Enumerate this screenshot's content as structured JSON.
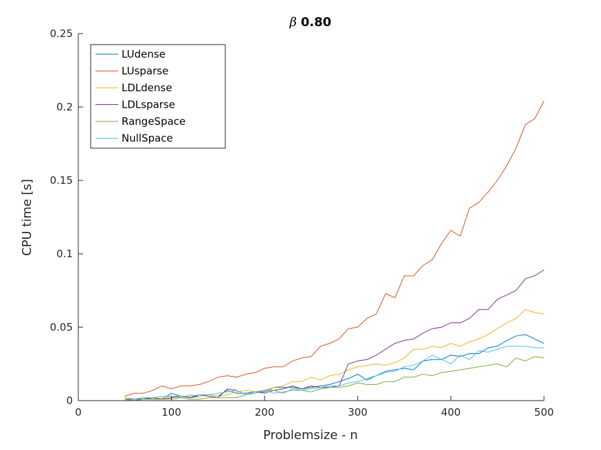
{
  "chart_data": {
    "type": "line",
    "title_symbol": "β",
    "title_value": "0.80",
    "xlabel": "Problemsize - n",
    "ylabel": "CPU time [s]",
    "xlim": [
      0,
      500
    ],
    "ylim": [
      0,
      0.25
    ],
    "xticks": [
      0,
      100,
      200,
      300,
      400,
      500
    ],
    "yticks": [
      0,
      0.05,
      0.1,
      0.15,
      0.2,
      0.25
    ],
    "xtick_labels": [
      "0",
      "100",
      "200",
      "300",
      "400",
      "500"
    ],
    "ytick_labels": [
      "0",
      "0.05",
      "0.1",
      "0.15",
      "0.2",
      "0.25"
    ],
    "grid": false,
    "legend_position": "top-left",
    "x": [
      50,
      60,
      70,
      80,
      90,
      100,
      110,
      120,
      130,
      140,
      150,
      160,
      170,
      180,
      190,
      200,
      210,
      220,
      230,
      240,
      250,
      260,
      270,
      280,
      290,
      300,
      310,
      320,
      330,
      340,
      350,
      360,
      370,
      380,
      390,
      400,
      410,
      420,
      430,
      440,
      450,
      460,
      470,
      480,
      490,
      500
    ],
    "series": [
      {
        "name": "LUdense",
        "color": "#0072BD",
        "values": [
          0.001,
          0.001,
          0.002,
          0.001,
          0.001,
          0.005,
          0.003,
          0.002,
          0.003,
          0.004,
          0.003,
          0.007,
          0.005,
          0.005,
          0.006,
          0.006,
          0.009,
          0.009,
          0.009,
          0.008,
          0.009,
          0.01,
          0.011,
          0.013,
          0.015,
          0.018,
          0.014,
          0.017,
          0.02,
          0.021,
          0.022,
          0.021,
          0.027,
          0.028,
          0.028,
          0.031,
          0.03,
          0.032,
          0.032,
          0.036,
          0.037,
          0.041,
          0.044,
          0.045,
          0.042,
          0.039
        ]
      },
      {
        "name": "LUsparse",
        "color": "#D95319",
        "values": [
          0.003,
          0.005,
          0.005,
          0.007,
          0.01,
          0.008,
          0.01,
          0.01,
          0.011,
          0.013,
          0.016,
          0.017,
          0.016,
          0.018,
          0.019,
          0.022,
          0.023,
          0.023,
          0.027,
          0.029,
          0.03,
          0.037,
          0.039,
          0.042,
          0.049,
          0.05,
          0.056,
          0.059,
          0.073,
          0.07,
          0.085,
          0.085,
          0.092,
          0.096,
          0.107,
          0.116,
          0.112,
          0.131,
          0.135,
          0.142,
          0.15,
          0.16,
          0.172,
          0.188,
          0.192,
          0.204
        ]
      },
      {
        "name": "LDLdense",
        "color": "#EDB120",
        "values": [
          0.002,
          0.001,
          0.001,
          0.001,
          0.002,
          0.003,
          0.002,
          0.004,
          0.003,
          0.004,
          0.003,
          0.004,
          0.006,
          0.007,
          0.006,
          0.007,
          0.009,
          0.01,
          0.013,
          0.013,
          0.016,
          0.014,
          0.017,
          0.018,
          0.021,
          0.023,
          0.024,
          0.025,
          0.024,
          0.026,
          0.029,
          0.035,
          0.035,
          0.037,
          0.036,
          0.039,
          0.037,
          0.04,
          0.042,
          0.045,
          0.049,
          0.053,
          0.056,
          0.062,
          0.06,
          0.059
        ]
      },
      {
        "name": "LDLsparse",
        "color": "#7E2F8E",
        "values": [
          0.001,
          0.001,
          0.001,
          0.002,
          0.001,
          0.002,
          0.003,
          0.002,
          0.004,
          0.003,
          0.002,
          0.008,
          0.007,
          0.004,
          0.006,
          0.005,
          0.007,
          0.008,
          0.01,
          0.008,
          0.01,
          0.009,
          0.009,
          0.01,
          0.025,
          0.027,
          0.028,
          0.031,
          0.035,
          0.039,
          0.041,
          0.042,
          0.046,
          0.049,
          0.05,
          0.053,
          0.053,
          0.056,
          0.062,
          0.062,
          0.069,
          0.072,
          0.075,
          0.083,
          0.085,
          0.089
        ]
      },
      {
        "name": "RangeSpace",
        "color": "#77AC30",
        "values": [
          0.001,
          0.0,
          0.001,
          0.001,
          0.001,
          0.001,
          0.002,
          0.001,
          0.001,
          0.002,
          0.002,
          0.002,
          0.002,
          0.004,
          0.005,
          0.007,
          0.007,
          0.005,
          0.008,
          0.007,
          0.006,
          0.008,
          0.009,
          0.009,
          0.01,
          0.012,
          0.011,
          0.011,
          0.013,
          0.013,
          0.016,
          0.016,
          0.018,
          0.017,
          0.019,
          0.02,
          0.021,
          0.022,
          0.023,
          0.024,
          0.025,
          0.023,
          0.029,
          0.027,
          0.03,
          0.029
        ]
      },
      {
        "name": "NullSpace",
        "color": "#4DBEEE",
        "values": [
          0.0,
          0.001,
          0.002,
          0.002,
          0.003,
          0.003,
          0.003,
          0.003,
          0.004,
          0.004,
          0.005,
          0.006,
          0.007,
          0.004,
          0.006,
          0.007,
          0.005,
          0.006,
          0.007,
          0.007,
          0.008,
          0.009,
          0.01,
          0.01,
          0.012,
          0.013,
          0.015,
          0.017,
          0.019,
          0.02,
          0.023,
          0.024,
          0.027,
          0.031,
          0.028,
          0.025,
          0.031,
          0.028,
          0.034,
          0.033,
          0.035,
          0.037,
          0.037,
          0.037,
          0.036,
          0.036
        ]
      }
    ]
  }
}
